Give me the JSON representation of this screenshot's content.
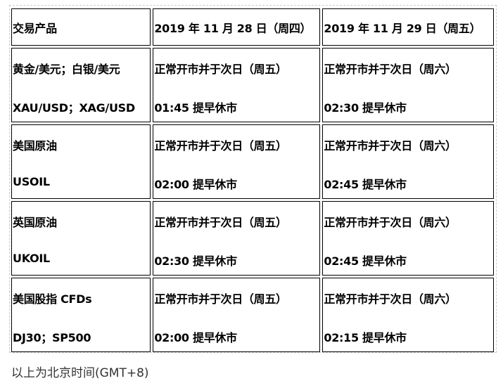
{
  "table": {
    "headers": [
      "交易产品",
      "2019 年 11 月 28 日（周四）",
      "2019 年 11 月 29 日（周五）"
    ],
    "rows": [
      {
        "product": [
          "黄金/美元；白银/美元",
          "XAU/USD；XAG/USD"
        ],
        "day1": [
          "正常开市并于次日（周五）",
          "01:45 提早休市"
        ],
        "day2": [
          "正常开市并于次日（周六）",
          "02:30 提早休市"
        ]
      },
      {
        "product": [
          "美国原油",
          "USOIL"
        ],
        "day1": [
          "正常开市并于次日（周五）",
          "02:00 提早休市"
        ],
        "day2": [
          "正常开市并于次日（周六）",
          "02:45 提早休市"
        ]
      },
      {
        "product": [
          "英国原油",
          "UKOIL"
        ],
        "day1": [
          "正常开市并于次日（周五）",
          "02:30 提早休市"
        ],
        "day2": [
          "正常开市并于次日（周六）",
          "02:45 提早休市"
        ]
      },
      {
        "product": [
          "美国股指 CFDs",
          "DJ30；SP500"
        ],
        "day1": [
          "正常开市并于次日（周五）",
          "02:00 提早休市"
        ],
        "day2": [
          "正常开市并于次日（周六）",
          "02:15 提早休市"
        ]
      }
    ]
  },
  "footnote": "以上为北京时间(GMT+8)"
}
